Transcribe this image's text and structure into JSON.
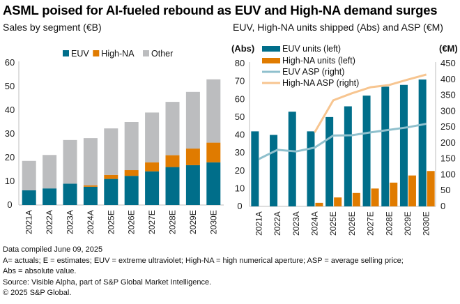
{
  "title": "ASML poised for AI-fueled rebound as EUV and High-NA demand surges",
  "colors": {
    "euv": "#006e8a",
    "high_na": "#e07b00",
    "other": "#bcbdbf",
    "euv_asp": "#8fc0cd",
    "high_na_asp": "#f7c590",
    "axis": "#bdbdbd"
  },
  "footer": {
    "lines": [
      "Data compiled June 09, 2025",
      "A= actuals; E = estimates; EUV = extreme ultraviolet; High-NA = high numerical aperture; ASP = average selling price;",
      "Abs = absolute value.",
      "Source: Visible Alpha, part of S&P Global Market Intelligence.",
      "© 2025 S&P Global."
    ]
  },
  "chart_data": [
    {
      "type": "bar",
      "stacked": true,
      "title": "Sales by segment (€B)",
      "xlabel": "",
      "ylabel": "",
      "categories": [
        "2021A",
        "2022A",
        "2023A",
        "2024A",
        "2025E",
        "2026E",
        "2027E",
        "2028E",
        "2029E",
        "2030E"
      ],
      "ylim": [
        0,
        60
      ],
      "yticks": [
        0,
        10,
        20,
        30,
        40,
        50,
        60
      ],
      "legend": "top",
      "grid": false,
      "series": [
        {
          "name": "EUV",
          "values": [
            6.2,
            7.0,
            9.0,
            7.7,
            11.0,
            12.3,
            14.2,
            16.0,
            16.8,
            18.0
          ]
        },
        {
          "name": "High-NA",
          "values": [
            0,
            0,
            0,
            0.6,
            1.7,
            2.4,
            3.8,
            5.0,
            7.0,
            8.3
          ]
        },
        {
          "name": "Other",
          "values": [
            12.4,
            14.1,
            18.4,
            19.9,
            19.6,
            20.3,
            21.0,
            22.5,
            23.9,
            26.7
          ]
        }
      ]
    },
    {
      "type": "bar+line",
      "title": "EUV, High-NA units shipped (Abs) and ASP (€M)",
      "categories": [
        "2021A",
        "2022A",
        "2023A",
        "2024A",
        "2025E",
        "2026E",
        "2027E",
        "2028E",
        "2029E",
        "2030E"
      ],
      "left_axis": {
        "label": "(Abs)",
        "ylim": [
          0,
          80
        ],
        "ticks": [
          0,
          10,
          20,
          30,
          40,
          50,
          60,
          70,
          80
        ]
      },
      "right_axis": {
        "label": "(€M)",
        "ylim": [
          0,
          450
        ],
        "ticks": [
          0,
          50,
          100,
          150,
          200,
          250,
          300,
          350,
          400,
          450
        ]
      },
      "legend": "top-left",
      "grid": false,
      "series": [
        {
          "name": "EUV units (left)",
          "type": "bar",
          "axis": "left",
          "values": [
            42,
            40,
            53,
            42,
            50,
            56,
            62,
            67,
            68,
            71
          ]
        },
        {
          "name": "High-NA units (left)",
          "type": "bar",
          "axis": "left",
          "values": [
            0,
            0,
            0,
            2,
            5,
            7.5,
            10,
            13.3,
            17.3,
            19.8
          ]
        },
        {
          "name": "EUV ASP (right)",
          "type": "line",
          "axis": "right",
          "values": [
            149,
            178,
            173,
            185,
            223,
            224,
            233,
            241,
            249,
            260
          ]
        },
        {
          "name": "High-NA ASP (right)",
          "type": "line",
          "axis": "right",
          "values": [
            null,
            null,
            null,
            233,
            334,
            356,
            375,
            382,
            399,
            415
          ]
        }
      ]
    }
  ]
}
